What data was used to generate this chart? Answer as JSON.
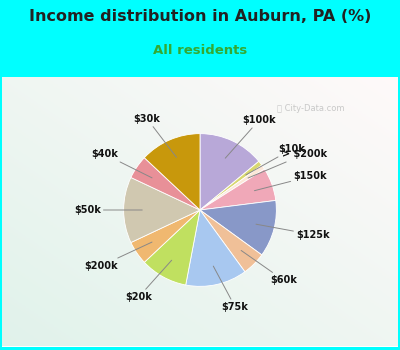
{
  "title": "Income distribution in Auburn, PA (%)",
  "subtitle": "All residents",
  "title_fontsize": 11.5,
  "subtitle_fontsize": 9.5,
  "fig_bg": "#00FFFF",
  "chart_bg_top_left": "#e8f5f0",
  "chart_bg_bottom_right": "#d0eee8",
  "watermark": "ⓘ City-Data.com",
  "slices": [
    {
      "label": "$100k",
      "value": 14,
      "color": "#b8a8d8"
    },
    {
      "label": "$10k",
      "value": 1,
      "color": "#d8d870"
    },
    {
      "label": "> $200k",
      "value": 1,
      "color": "#fce8d8"
    },
    {
      "label": "$150k",
      "value": 7,
      "color": "#f0a8b8"
    },
    {
      "label": "$125k",
      "value": 12,
      "color": "#8898c8"
    },
    {
      "label": "$60k",
      "value": 5,
      "color": "#f0c098"
    },
    {
      "label": "$75k",
      "value": 13,
      "color": "#a8c8f0"
    },
    {
      "label": "$20k",
      "value": 10,
      "color": "#c0e060"
    },
    {
      "label": "$200k",
      "value": 5,
      "color": "#f0b870"
    },
    {
      "label": "$50k",
      "value": 14,
      "color": "#d0c8b0"
    },
    {
      "label": "$40k",
      "value": 5,
      "color": "#e89098"
    },
    {
      "label": "$30k",
      "value": 13,
      "color": "#c8980c"
    }
  ]
}
